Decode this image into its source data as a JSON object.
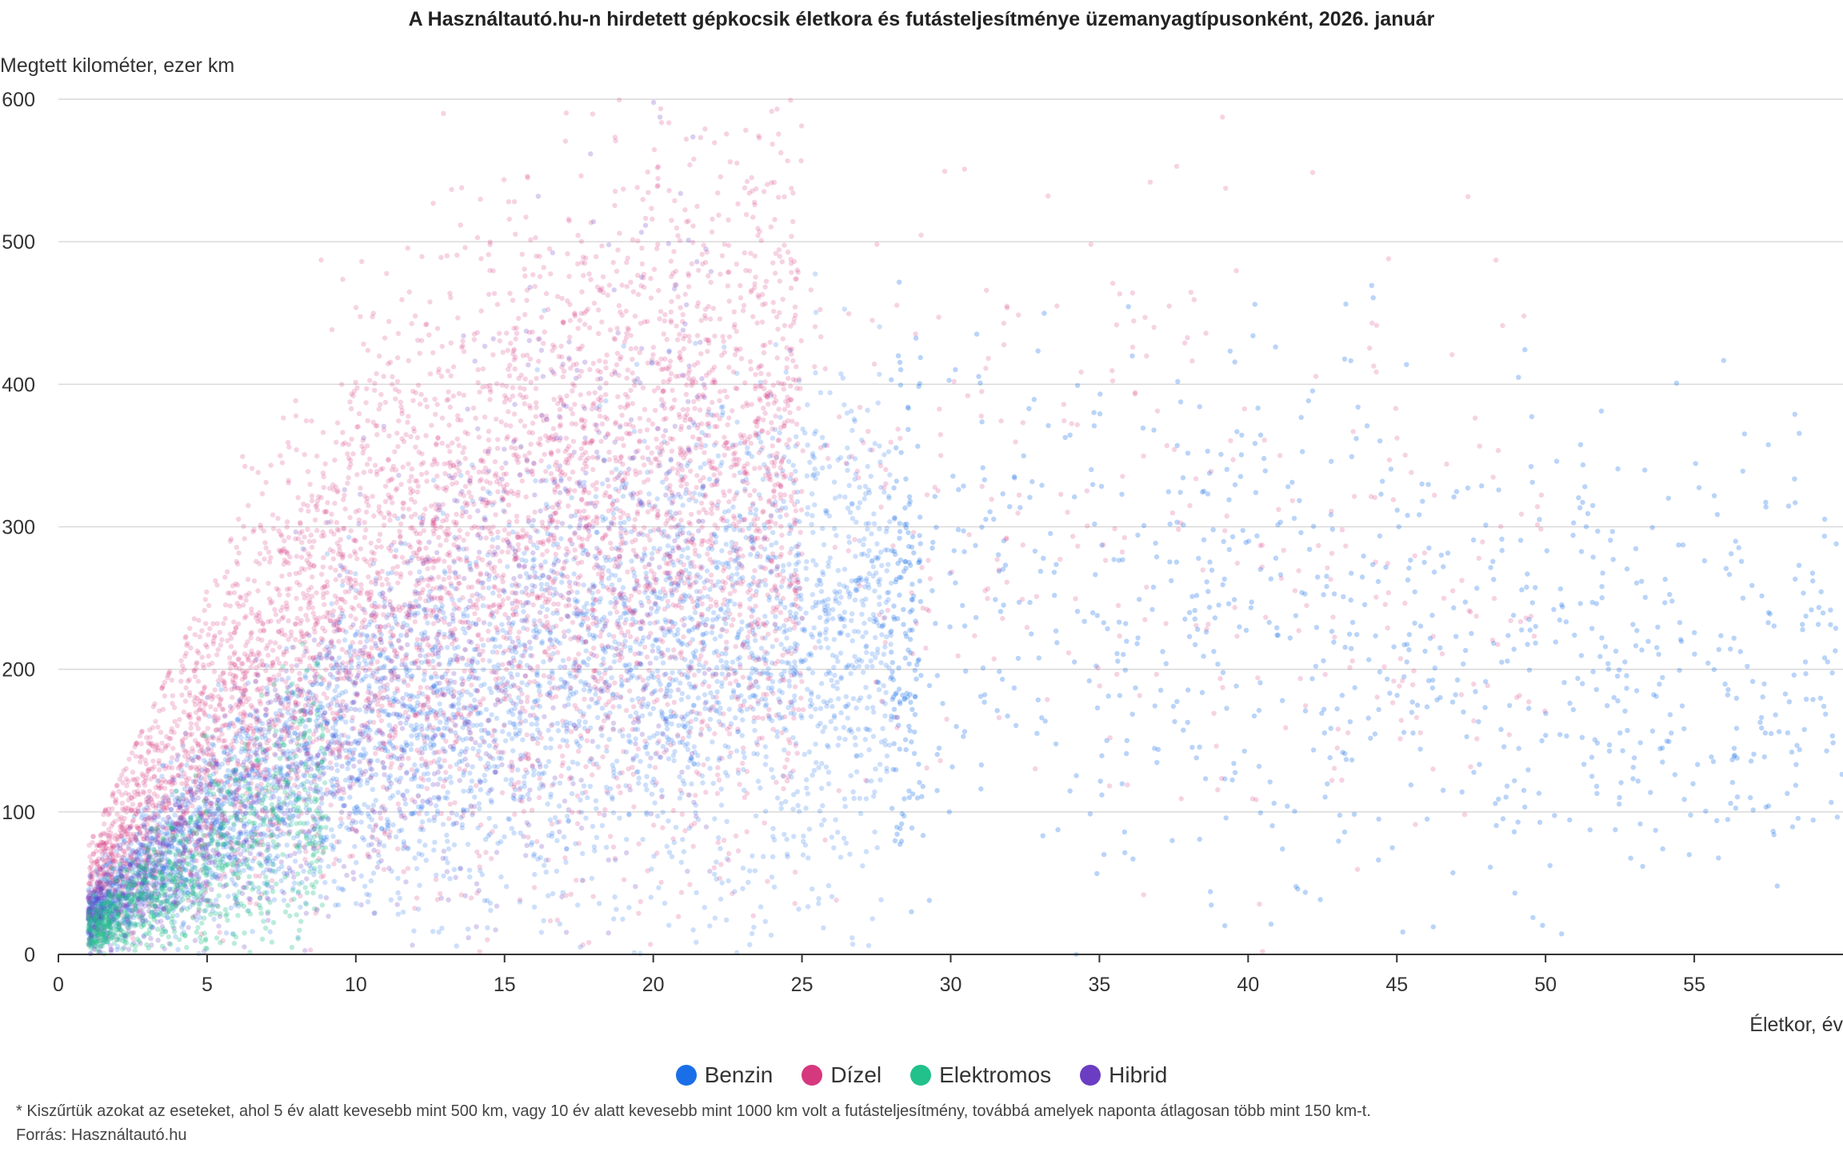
{
  "chart_data": {
    "type": "scatter",
    "title": "A Használtautó.hu-n hirdetett gépkocsik életkora és futásteljesítménye üzemanyagtípusonként, 2026. január",
    "xlabel": "Életkor, év",
    "ylabel": "Megtett kilométer, ezer km",
    "xlim": [
      0,
      60
    ],
    "ylim": [
      0,
      600
    ],
    "xticks": [
      "0",
      "5",
      "10",
      "15",
      "20",
      "25",
      "30",
      "35",
      "40",
      "45",
      "50",
      "55"
    ],
    "yticks": [
      "0",
      "100",
      "200",
      "300",
      "400",
      "500",
      "600"
    ],
    "grid": true,
    "legend_position": "bottom",
    "series": [
      {
        "name": "Benzin",
        "color": "#1a6fe8",
        "x_range": [
          1,
          60
        ],
        "typical_km": 170
      },
      {
        "name": "Dízel",
        "color": "#d6387e",
        "x_range": [
          1,
          52
        ],
        "typical_km": 230
      },
      {
        "name": "Elektromos",
        "color": "#22c08a",
        "x_range": [
          1,
          9
        ],
        "typical_km": 40
      },
      {
        "name": "Hibrid",
        "color": "#6a3dc2",
        "x_range": [
          1,
          24
        ],
        "typical_km": 120
      }
    ]
  },
  "footnote": "* Kiszűrtük azokat az eseteket, ahol 5 év alatt kevesebb mint 500 km, vagy 10 év alatt kevesebb mint 1000 km volt a futásteljesítmény, továbbá amelyek naponta átlagosan több mint 150 km-t.",
  "source": "Forrás: Használtautó.hu"
}
